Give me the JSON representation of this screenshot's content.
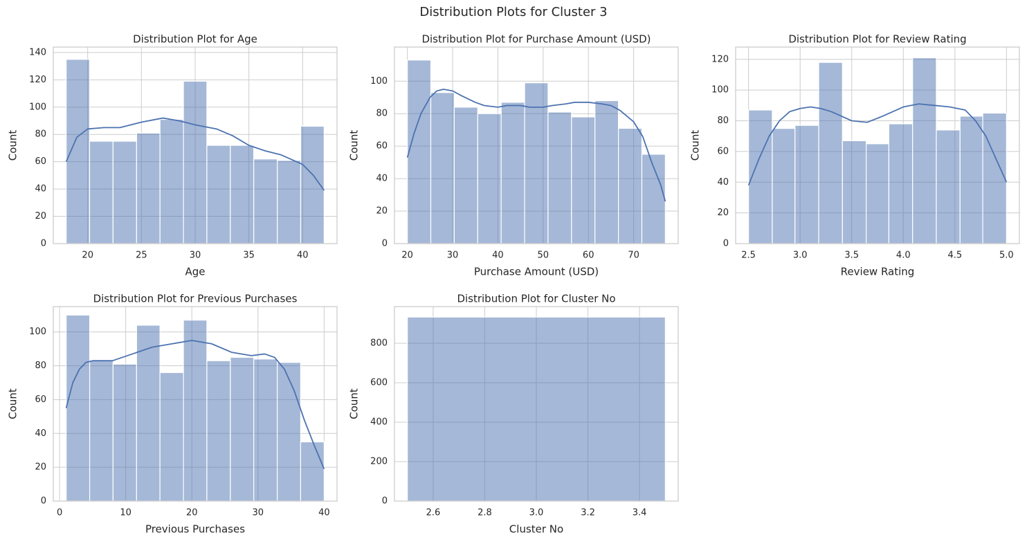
{
  "title": "Distribution Plots for Cluster 3",
  "chart_data": [
    {
      "type": "histogram",
      "title": "Distribution Plot for Age",
      "xlabel": "Age",
      "ylabel": "Count",
      "color": "#4c72b0",
      "grid": true,
      "bins": [
        18,
        20.18,
        22.36,
        24.55,
        26.73,
        28.91,
        31.09,
        33.27,
        35.45,
        37.64,
        39.82,
        42
      ],
      "counts": [
        135,
        75,
        75,
        81,
        91,
        119,
        72,
        72,
        62,
        61,
        86
      ],
      "kde": {
        "x": [
          18,
          19,
          20,
          21.5,
          23,
          25,
          27,
          28.5,
          30,
          32,
          33.5,
          35,
          36.5,
          38,
          40,
          41,
          42
        ],
        "values": [
          60,
          78,
          84,
          85,
          85,
          89,
          92,
          90,
          87,
          84,
          79,
          72,
          68,
          65,
          58,
          50,
          39
        ]
      },
      "xlim": [
        16.8,
        43.2
      ],
      "xticks": [
        20,
        25,
        30,
        35,
        40
      ],
      "ylim": [
        0,
        144
      ],
      "yticks": [
        0,
        20,
        40,
        60,
        80,
        100,
        120,
        140
      ]
    },
    {
      "type": "histogram",
      "title": "Distribution Plot for Purchase Amount (USD)",
      "xlabel": "Purchase Amount (USD)",
      "ylabel": "Count",
      "color": "#4c72b0",
      "grid": true,
      "bins": [
        20,
        25.18,
        30.36,
        35.55,
        40.73,
        45.91,
        51.09,
        56.27,
        61.45,
        66.64,
        71.82,
        77
      ],
      "counts": [
        113,
        93,
        84,
        80,
        87,
        99,
        81,
        78,
        88,
        71,
        55
      ],
      "kde": {
        "x": [
          20,
          21.5,
          23,
          25,
          26.5,
          28,
          30,
          32,
          35,
          37,
          40,
          42,
          45,
          47,
          50,
          52,
          55,
          57,
          60,
          63,
          65,
          67,
          70,
          72,
          74,
          76,
          77
        ],
        "values": [
          53,
          68,
          80,
          90,
          94,
          95,
          94,
          91,
          87,
          85,
          84,
          85,
          85,
          84,
          84,
          85,
          86,
          87,
          87,
          86,
          85,
          82,
          75,
          66,
          50,
          36,
          26
        ]
      },
      "xlim": [
        17.15,
        79.85
      ],
      "xticks": [
        20,
        30,
        40,
        50,
        60,
        70
      ],
      "ylim": [
        0,
        121
      ],
      "yticks": [
        0,
        20,
        40,
        60,
        80,
        100
      ]
    },
    {
      "type": "histogram",
      "title": "Distribution Plot for Review Rating",
      "xlabel": "Review Rating",
      "ylabel": "Count",
      "color": "#4c72b0",
      "grid": true,
      "bins": [
        2.5,
        2.73,
        2.95,
        3.18,
        3.41,
        3.64,
        3.86,
        4.09,
        4.32,
        4.55,
        4.77,
        5.0
      ],
      "counts": [
        87,
        75,
        77,
        118,
        67,
        65,
        78,
        121,
        74,
        83,
        85
      ],
      "kde": {
        "x": [
          2.5,
          2.6,
          2.7,
          2.8,
          2.9,
          3.0,
          3.1,
          3.2,
          3.3,
          3.4,
          3.5,
          3.65,
          3.8,
          3.9,
          4.0,
          4.15,
          4.3,
          4.45,
          4.6,
          4.7,
          4.8,
          4.9,
          5.0
        ],
        "values": [
          38,
          55,
          70,
          80,
          86,
          88,
          89,
          88,
          86,
          83,
          80,
          79,
          83,
          86,
          89,
          91,
          90,
          89,
          87,
          80,
          70,
          55,
          40
        ]
      },
      "xlim": [
        2.375,
        5.125
      ],
      "xticks": [
        2.5,
        {
          "value": 3,
          "label": "3.0"
        },
        3.5,
        {
          "value": 4,
          "label": "4.0"
        },
        4.5,
        {
          "value": 5,
          "label": "5.0"
        }
      ],
      "ylim": [
        0,
        128
      ],
      "yticks": [
        0,
        20,
        40,
        60,
        80,
        100,
        120
      ]
    },
    {
      "type": "histogram",
      "title": "Distribution Plot for Previous Purchases",
      "xlabel": "Previous Purchases",
      "ylabel": "Count",
      "color": "#4c72b0",
      "grid": true,
      "bins": [
        1,
        4.55,
        8.09,
        11.64,
        15.18,
        18.73,
        22.27,
        25.82,
        29.36,
        32.91,
        36.45,
        40
      ],
      "counts": [
        110,
        83,
        81,
        104,
        76,
        107,
        83,
        85,
        84,
        82,
        35
      ],
      "kde": {
        "x": [
          1,
          2,
          3,
          4,
          5,
          8,
          11,
          14,
          17,
          20,
          23,
          26,
          29,
          31,
          32.5,
          34,
          35.5,
          37,
          38.5,
          40
        ],
        "values": [
          55,
          70,
          78,
          82,
          83,
          83,
          87,
          91,
          93,
          95,
          93,
          88,
          86,
          87,
          85,
          78,
          65,
          48,
          33,
          19
        ]
      },
      "xlim": [
        -0.95,
        41.95
      ],
      "xticks": [
        0,
        10,
        20,
        30,
        40
      ],
      "ylim": [
        0,
        115
      ],
      "yticks": [
        0,
        20,
        40,
        60,
        80,
        100
      ]
    },
    {
      "type": "histogram",
      "title": "Distribution Plot for Cluster No",
      "xlabel": "Cluster No",
      "ylabel": "Count",
      "color": "#4c72b0",
      "grid": true,
      "bins": [
        2.5,
        3.5
      ],
      "counts": [
        933
      ],
      "xlim": [
        2.45,
        3.55
      ],
      "xticks": [
        2.6,
        2.8,
        {
          "value": 3,
          "label": "3.0"
        },
        3.2,
        3.4
      ],
      "ylim": [
        0,
        986
      ],
      "yticks": [
        0,
        200,
        400,
        600,
        800
      ]
    }
  ]
}
